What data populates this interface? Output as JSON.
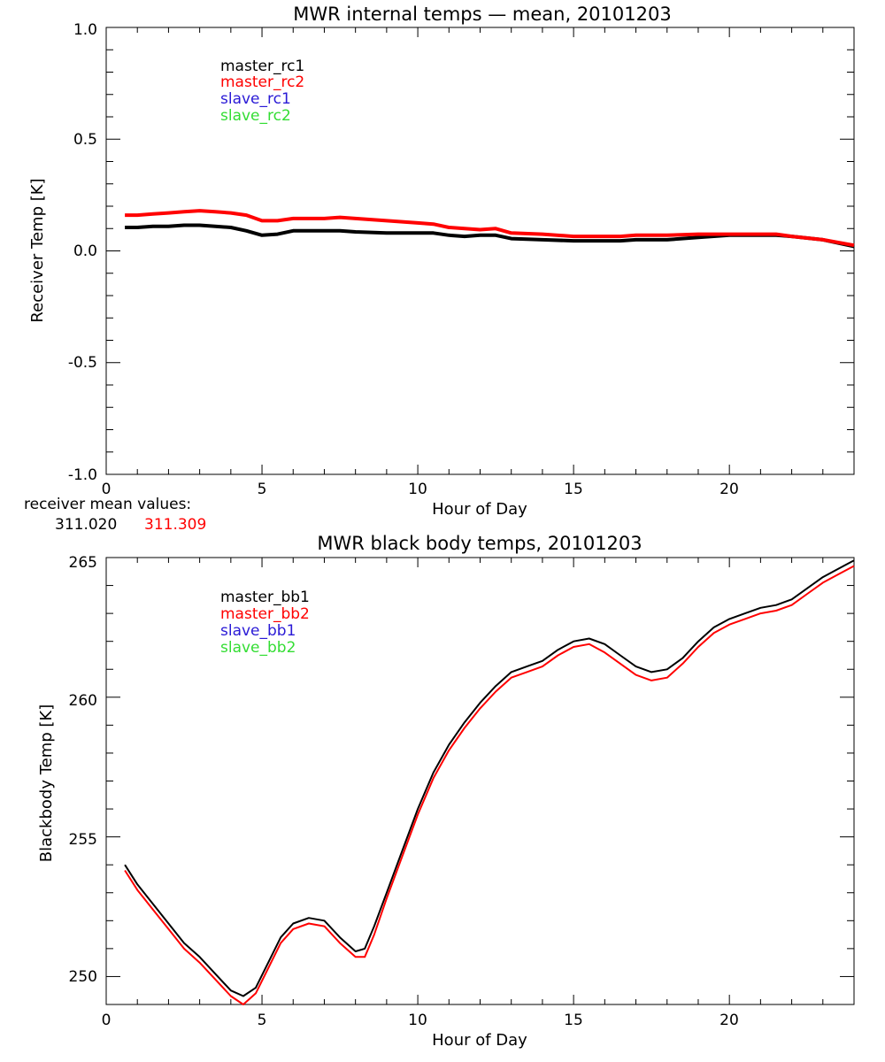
{
  "colors": {
    "master_rc1": "#000000",
    "master_rc2": "#ff0000",
    "slave_rc1": "#2a1ad6",
    "slave_rc2": "#33dd33"
  },
  "chart_data": [
    {
      "type": "line",
      "title": "MWR internal temps — mean, 20101203",
      "xlabel": "Hour of Day",
      "ylabel": "Receiver Temp [K]",
      "xlim": [
        0,
        24
      ],
      "ylim": [
        -1.0,
        1.0
      ],
      "xticks": [
        "0",
        "5",
        "10",
        "15",
        "20"
      ],
      "yticks": [
        "-1.0",
        "-0.5",
        "0.0",
        "0.5",
        "1.0"
      ],
      "grid": false,
      "legend_position": "top-left",
      "legend": [
        "master_rc1",
        "master_rc2",
        "slave_rc1",
        "slave_rc2"
      ],
      "series": [
        {
          "name": "master_rc1",
          "x": [
            0.6,
            1.0,
            1.5,
            2.0,
            2.5,
            3.0,
            3.5,
            4.0,
            4.5,
            5.0,
            5.5,
            6.0,
            6.5,
            7.0,
            7.5,
            8.0,
            9.0,
            10.0,
            10.5,
            11.0,
            11.5,
            12.0,
            12.5,
            13.0,
            14.0,
            15.0,
            16.0,
            16.5,
            17.0,
            18.0,
            19.0,
            20.0,
            21.0,
            21.5,
            22.0,
            23.0,
            24.0
          ],
          "y": [
            0.105,
            0.105,
            0.11,
            0.11,
            0.115,
            0.115,
            0.11,
            0.105,
            0.09,
            0.07,
            0.075,
            0.09,
            0.09,
            0.09,
            0.09,
            0.085,
            0.08,
            0.08,
            0.08,
            0.07,
            0.065,
            0.07,
            0.07,
            0.055,
            0.05,
            0.045,
            0.045,
            0.045,
            0.05,
            0.05,
            0.06,
            0.07,
            0.07,
            0.07,
            0.065,
            0.05,
            0.02
          ]
        },
        {
          "name": "master_rc2",
          "x": [
            0.6,
            1.0,
            1.5,
            2.0,
            2.5,
            3.0,
            3.5,
            4.0,
            4.5,
            5.0,
            5.5,
            6.0,
            6.5,
            7.0,
            7.5,
            8.0,
            9.0,
            10.0,
            10.5,
            11.0,
            11.5,
            12.0,
            12.5,
            13.0,
            14.0,
            15.0,
            16.0,
            16.5,
            17.0,
            18.0,
            19.0,
            20.0,
            21.0,
            21.5,
            22.0,
            23.0,
            24.0
          ],
          "y": [
            0.16,
            0.16,
            0.165,
            0.17,
            0.175,
            0.18,
            0.175,
            0.17,
            0.16,
            0.135,
            0.135,
            0.145,
            0.145,
            0.145,
            0.15,
            0.145,
            0.135,
            0.125,
            0.12,
            0.105,
            0.1,
            0.095,
            0.1,
            0.08,
            0.075,
            0.065,
            0.065,
            0.065,
            0.07,
            0.07,
            0.075,
            0.075,
            0.075,
            0.075,
            0.065,
            0.05,
            0.025
          ]
        },
        {
          "name": "slave_rc1",
          "x": [],
          "y": []
        },
        {
          "name": "slave_rc2",
          "x": [],
          "y": []
        }
      ],
      "footer_label": "receiver mean values:",
      "footer_values": [
        "311.020",
        "311.309"
      ]
    },
    {
      "type": "line",
      "title": "MWR black body temps, 20101203",
      "xlabel": "Hour of Day",
      "ylabel": "Blackbody Temp [K]",
      "xlim": [
        0,
        24
      ],
      "ylim": [
        249,
        265
      ],
      "xticks": [
        "0",
        "5",
        "10",
        "15",
        "20"
      ],
      "yticks": [
        "250",
        "255",
        "260",
        "265"
      ],
      "grid": false,
      "legend_position": "top-left",
      "legend": [
        "master_bb1",
        "master_bb2",
        "slave_bb1",
        "slave_bb2"
      ],
      "series": [
        {
          "name": "master_bb1",
          "x": [
            0.6,
            1.0,
            1.5,
            2.0,
            2.5,
            3.0,
            3.5,
            4.0,
            4.4,
            4.8,
            5.2,
            5.6,
            6.0,
            6.5,
            7.0,
            7.5,
            8.0,
            8.3,
            8.6,
            9.0,
            9.5,
            10.0,
            10.5,
            11.0,
            11.5,
            12.0,
            12.5,
            13.0,
            13.5,
            14.0,
            14.5,
            15.0,
            15.5,
            16.0,
            16.5,
            17.0,
            17.5,
            18.0,
            18.5,
            19.0,
            19.5,
            20.0,
            20.5,
            21.0,
            21.5,
            22.0,
            22.5,
            23.0,
            23.5,
            24.0
          ],
          "y": [
            254.0,
            253.3,
            252.6,
            251.9,
            251.2,
            250.7,
            250.1,
            249.5,
            249.3,
            249.6,
            250.5,
            251.4,
            251.9,
            252.1,
            252.0,
            251.4,
            250.9,
            251.0,
            251.8,
            253.0,
            254.5,
            256.0,
            257.3,
            258.3,
            259.1,
            259.8,
            260.4,
            260.9,
            261.1,
            261.3,
            261.7,
            262.0,
            262.1,
            261.9,
            261.5,
            261.1,
            260.9,
            261.0,
            261.4,
            262.0,
            262.5,
            262.8,
            263.0,
            263.2,
            263.3,
            263.5,
            263.9,
            264.3,
            264.6,
            264.9
          ]
        },
        {
          "name": "master_bb2",
          "x": [
            0.6,
            1.0,
            1.5,
            2.0,
            2.5,
            3.0,
            3.5,
            4.0,
            4.4,
            4.8,
            5.2,
            5.6,
            6.0,
            6.5,
            7.0,
            7.5,
            8.0,
            8.3,
            8.6,
            9.0,
            9.5,
            10.0,
            10.5,
            11.0,
            11.5,
            12.0,
            12.5,
            13.0,
            13.5,
            14.0,
            14.5,
            15.0,
            15.5,
            16.0,
            16.5,
            17.0,
            17.5,
            18.0,
            18.5,
            19.0,
            19.5,
            20.0,
            20.5,
            21.0,
            21.5,
            22.0,
            22.5,
            23.0,
            23.5,
            24.0
          ],
          "y": [
            253.8,
            253.1,
            252.4,
            251.7,
            251.0,
            250.5,
            249.9,
            249.3,
            249.0,
            249.4,
            250.3,
            251.2,
            251.7,
            251.9,
            251.8,
            251.2,
            250.7,
            250.7,
            251.5,
            252.8,
            254.3,
            255.8,
            257.1,
            258.1,
            258.9,
            259.6,
            260.2,
            260.7,
            260.9,
            261.1,
            261.5,
            261.8,
            261.9,
            261.6,
            261.2,
            260.8,
            260.6,
            260.7,
            261.2,
            261.8,
            262.3,
            262.6,
            262.8,
            263.0,
            263.1,
            263.3,
            263.7,
            264.1,
            264.4,
            264.7
          ]
        },
        {
          "name": "slave_bb1",
          "x": [],
          "y": []
        },
        {
          "name": "slave_bb2",
          "x": [],
          "y": []
        }
      ]
    }
  ]
}
